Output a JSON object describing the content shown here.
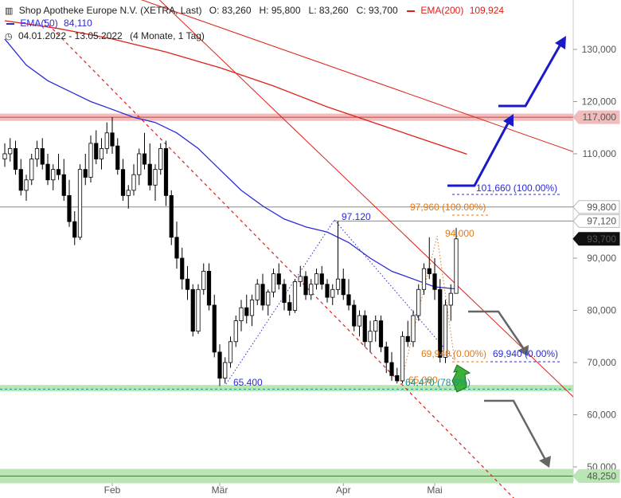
{
  "header": {
    "title": "Shop Apotheke Europe N.V. (XETRA, Last)",
    "ohlc": "O: 83,260   H: 95,800   L: 83,260   C: 93,700",
    "ema200_label": "EMA(200)",
    "ema200_value": "109,924",
    "ema50_label": "EMA(50)",
    "ema50_value": "84,110",
    "range": "04.01.2022 - 13.05.2022",
    "range_note": "(4 Monate, 1 Tag)"
  },
  "colors": {
    "up": "#ffffff",
    "down": "#000000",
    "ema50": "#2b2bd6",
    "ema200": "#e0201a",
    "fib_blue": "#2b2bd6",
    "fib_orange": "#e07a1a",
    "support_zone": "#b9e6b3",
    "resistance_zone": "#f2bcbc",
    "arrow_blue": "#1a1acc",
    "arrow_gray": "#666666",
    "arrow_green": "#3bb03b"
  },
  "chart_data": {
    "type": "candlestick",
    "ylim": [
      46,
      140
    ],
    "y_ticks": [
      50,
      60,
      70,
      80,
      90,
      100,
      110,
      120,
      130
    ],
    "y_tick_labels": [
      "50,000",
      "60,000",
      "70,000",
      "80,000",
      "90,000",
      "100,000",
      "110,000",
      "120,000",
      "130,000"
    ],
    "x_ticks": [
      {
        "label": "Feb",
        "index": 20
      },
      {
        "label": "Mär",
        "index": 40
      },
      {
        "label": "Apr",
        "index": 63
      },
      {
        "label": "Mai",
        "index": 80
      }
    ],
    "candles": [
      [
        109.0,
        112.0,
        107.5,
        110.0
      ],
      [
        110.0,
        113.0,
        108.5,
        111.0
      ],
      [
        111.0,
        112.5,
        106.0,
        107.0
      ],
      [
        107.0,
        109.0,
        102.0,
        103.0
      ],
      [
        103.0,
        106.0,
        101.0,
        105.0
      ],
      [
        105.0,
        110.0,
        104.0,
        109.0
      ],
      [
        109.0,
        112.5,
        107.5,
        111.0
      ],
      [
        111.0,
        113.0,
        107.0,
        108.0
      ],
      [
        108.0,
        110.0,
        104.0,
        105.0
      ],
      [
        105.0,
        108.0,
        103.0,
        107.0
      ],
      [
        107.0,
        110.0,
        105.0,
        106.0
      ],
      [
        106.0,
        109.0,
        101.0,
        102.0
      ],
      [
        102.0,
        105.0,
        96.0,
        97.0
      ],
      [
        97.0,
        99.0,
        92.5,
        94.0
      ],
      [
        94.0,
        108.0,
        93.5,
        107.0
      ],
      [
        107.0,
        110.0,
        104.0,
        105.5
      ],
      [
        105.5,
        113.5,
        104.5,
        112.0
      ],
      [
        112.0,
        114.5,
        108.0,
        109.0
      ],
      [
        109.0,
        113.0,
        107.0,
        111.0
      ],
      [
        111.0,
        116.0,
        110.0,
        114.0
      ],
      [
        114.0,
        117.0,
        110.0,
        111.5
      ],
      [
        111.5,
        113.0,
        106.0,
        107.0
      ],
      [
        107.0,
        109.0,
        101.0,
        102.0
      ],
      [
        102.0,
        104.0,
        99.5,
        103.0
      ],
      [
        103.0,
        108.0,
        102.0,
        106.0
      ],
      [
        106.0,
        111.0,
        104.0,
        110.0
      ],
      [
        110.0,
        114.0,
        107.0,
        108.0
      ],
      [
        108.0,
        112.0,
        103.0,
        104.0
      ],
      [
        104.0,
        108.0,
        101.0,
        107.0
      ],
      [
        107.0,
        112.0,
        106.0,
        111.0
      ],
      [
        111.0,
        112.5,
        100.0,
        102.0
      ],
      [
        102.0,
        103.0,
        92.5,
        94.0
      ],
      [
        94.0,
        97.0,
        88.0,
        90.0
      ],
      [
        90.0,
        92.0,
        84.0,
        86.0
      ],
      [
        86.0,
        88.5,
        82.0,
        84.0
      ],
      [
        84.0,
        85.0,
        75.0,
        76.0
      ],
      [
        76.0,
        85.0,
        75.5,
        84.0
      ],
      [
        84.0,
        89.0,
        83.0,
        87.5
      ],
      [
        87.5,
        89.0,
        80.0,
        81.0
      ],
      [
        81.0,
        83.0,
        71.0,
        72.0
      ],
      [
        72.0,
        73.5,
        65.5,
        67.0
      ],
      [
        67.0,
        71.0,
        66.0,
        70.0
      ],
      [
        70.0,
        75.0,
        69.0,
        74.0
      ],
      [
        74.0,
        79.0,
        73.0,
        78.0
      ],
      [
        78.0,
        82.0,
        76.0,
        80.5
      ],
      [
        80.5,
        83.0,
        77.5,
        79.0
      ],
      [
        79.0,
        83.0,
        77.0,
        82.0
      ],
      [
        82.0,
        86.0,
        81.0,
        85.0
      ],
      [
        85.0,
        87.0,
        80.0,
        81.0
      ],
      [
        81.0,
        84.0,
        79.0,
        83.5
      ],
      [
        83.5,
        88.0,
        82.5,
        87.0
      ],
      [
        87.0,
        89.0,
        84.0,
        85.0
      ],
      [
        85.0,
        86.0,
        80.0,
        81.5
      ],
      [
        81.5,
        83.0,
        79.0,
        80.0
      ],
      [
        80.0,
        86.0,
        79.5,
        85.5
      ],
      [
        85.5,
        88.5,
        84.5,
        86.5
      ],
      [
        86.5,
        87.5,
        82.0,
        83.0
      ],
      [
        83.0,
        86.0,
        82.0,
        85.0
      ],
      [
        85.0,
        88.0,
        84.0,
        87.0
      ],
      [
        87.0,
        88.5,
        84.0,
        85.0
      ],
      [
        85.0,
        86.0,
        81.5,
        82.5
      ],
      [
        82.5,
        85.0,
        81.0,
        84.0
      ],
      [
        84.0,
        97.1,
        83.0,
        86.0
      ],
      [
        86.0,
        88.0,
        82.0,
        83.0
      ],
      [
        83.0,
        86.0,
        80.0,
        81.0
      ],
      [
        81.0,
        82.0,
        76.0,
        77.0
      ],
      [
        77.0,
        80.0,
        75.0,
        79.0
      ],
      [
        79.0,
        80.0,
        73.0,
        74.0
      ],
      [
        74.0,
        78.0,
        72.0,
        76.0
      ],
      [
        76.0,
        79.0,
        74.0,
        78.0
      ],
      [
        78.0,
        79.0,
        72.0,
        73.0
      ],
      [
        73.0,
        74.0,
        68.0,
        70.0
      ],
      [
        70.0,
        72.0,
        66.5,
        67.5
      ],
      [
        67.5,
        69.0,
        66.0,
        66.5
      ],
      [
        66.5,
        76.0,
        66.0,
        75.0
      ],
      [
        75.0,
        78.0,
        73.0,
        74.0
      ],
      [
        74.0,
        80.0,
        73.0,
        79.0
      ],
      [
        79.0,
        85.0,
        78.0,
        84.0
      ],
      [
        84.0,
        89.0,
        83.0,
        88.0
      ],
      [
        88.0,
        94.0,
        86.0,
        87.0
      ],
      [
        87.0,
        90.0,
        82.0,
        84.0
      ],
      [
        84.0,
        86.0,
        70.0,
        71.0
      ],
      [
        71.0,
        82.0,
        69.9,
        81.0
      ],
      [
        81.0,
        85.0,
        78.0,
        83.26
      ],
      [
        83.26,
        95.8,
        83.26,
        93.7
      ]
    ],
    "series": [
      {
        "name": "EMA(50)",
        "x": [
          0,
          4,
          8,
          12,
          16,
          20,
          24,
          28,
          32,
          36,
          40,
          44,
          48,
          52,
          56,
          60,
          64,
          68,
          72,
          76,
          80,
          84
        ],
        "values": [
          132.0,
          127.0,
          124.0,
          122.0,
          120.0,
          118.5,
          117.0,
          116.0,
          114.0,
          111.0,
          107.0,
          103.0,
          100.0,
          97.5,
          96.0,
          95.0,
          93.0,
          90.0,
          87.5,
          86.0,
          84.5,
          84.11
        ]
      },
      {
        "name": "EMA(200)",
        "x": [
          0,
          10,
          20,
          30,
          40,
          50,
          60,
          70,
          80,
          86
        ],
        "values": [
          135.5,
          134.0,
          132.0,
          129.5,
          126.5,
          123.0,
          119.0,
          115.5,
          112.0,
          109.924
        ]
      }
    ],
    "price_levels": [
      {
        "value": 117.0,
        "label": "117,000",
        "style": "zone-red"
      },
      {
        "value": 99.8,
        "label": "99,800",
        "style": "line-gray"
      },
      {
        "value": 97.12,
        "label": "97,120",
        "style": "line-gray"
      },
      {
        "value": 93.7,
        "label": "93,700",
        "style": "last"
      },
      {
        "value": 48.25,
        "label": "48,250",
        "style": "zone-green"
      }
    ],
    "support_zone": [
      64.5,
      65.7
    ],
    "annotations": {
      "low_a": "65.400",
      "high_b": "97.120",
      "fib_blue_100": "101,660 (100.00%)",
      "fib_blue_0": "69,940 (0.00%)",
      "fib_orange_100": "97,960 (100.00%)",
      "fib_orange_0": "69,940 (0.00%)",
      "fib_low_orange": "65.080",
      "fib_786": "64,470 (78.6%)",
      "high_94": "94.000"
    }
  }
}
